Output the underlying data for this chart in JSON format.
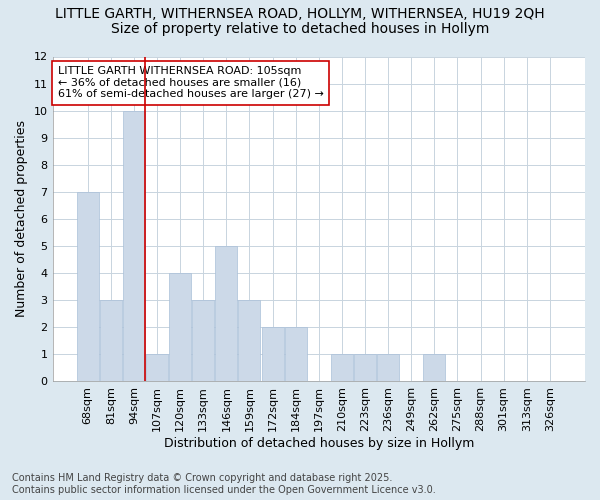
{
  "title_line1": "LITTLE GARTH, WITHERNSEA ROAD, HOLLYM, WITHERNSEA, HU19 2QH",
  "title_line2": "Size of property relative to detached houses in Hollym",
  "xlabel": "Distribution of detached houses by size in Hollym",
  "ylabel": "Number of detached properties",
  "categories": [
    "68sqm",
    "81sqm",
    "94sqm",
    "107sqm",
    "120sqm",
    "133sqm",
    "146sqm",
    "159sqm",
    "172sqm",
    "184sqm",
    "197sqm",
    "210sqm",
    "223sqm",
    "236sqm",
    "249sqm",
    "262sqm",
    "275sqm",
    "288sqm",
    "301sqm",
    "313sqm",
    "326sqm"
  ],
  "values": [
    7,
    3,
    10,
    1,
    4,
    3,
    5,
    3,
    2,
    2,
    0,
    1,
    1,
    1,
    0,
    1,
    0,
    0,
    0,
    0,
    0
  ],
  "bar_color": "#ccd9e8",
  "bar_edge_color": "#aac0d8",
  "vline_x": 2.5,
  "vline_color": "#cc0000",
  "annotation_text": "LITTLE GARTH WITHERNSEA ROAD: 105sqm\n← 36% of detached houses are smaller (16)\n61% of semi-detached houses are larger (27) →",
  "annotation_box_color": "#ffffff",
  "annotation_box_edge": "#cc0000",
  "ylim": [
    0,
    12
  ],
  "yticks": [
    0,
    1,
    2,
    3,
    4,
    5,
    6,
    7,
    8,
    9,
    10,
    11,
    12
  ],
  "grid_color": "#c8d4de",
  "bg_color": "#dce8f0",
  "plot_bg_color": "#ffffff",
  "footnote": "Contains HM Land Registry data © Crown copyright and database right 2025.\nContains public sector information licensed under the Open Government Licence v3.0.",
  "title_fontsize": 10,
  "subtitle_fontsize": 10,
  "tick_fontsize": 8,
  "label_fontsize": 9,
  "footnote_fontsize": 7,
  "annotation_fontsize": 8
}
